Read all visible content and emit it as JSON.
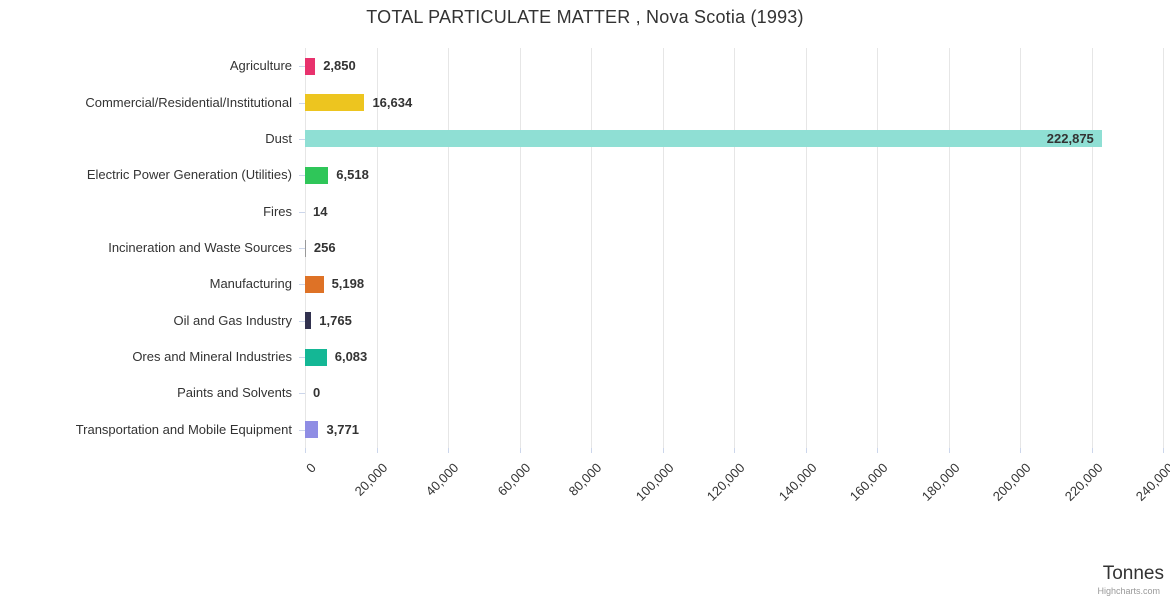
{
  "title": "TOTAL PARTICULATE MATTER , Nova Scotia (1993)",
  "x_axis": {
    "title": "Tonnes"
  },
  "credits": "Highcharts.com",
  "chart_data": {
    "type": "bar",
    "orientation": "horizontal",
    "title": "TOTAL PARTICULATE MATTER , Nova Scotia (1993)",
    "xlabel": "Tonnes",
    "ylabel": "",
    "xlim": [
      0,
      240000
    ],
    "grid": true,
    "legend": false,
    "categories": [
      "Agriculture",
      "Commercial/Residential/Institutional",
      "Dust",
      "Electric Power Generation (Utilities)",
      "Fires",
      "Incineration and Waste Sources",
      "Manufacturing",
      "Oil and Gas Industry",
      "Ores and Mineral Industries",
      "Paints and Solvents",
      "Transportation and Mobile Equipment"
    ],
    "values": [
      2850,
      16634,
      222875,
      6518,
      14,
      256,
      5198,
      1765,
      6083,
      0,
      3771
    ],
    "value_labels": [
      "2,850",
      "16,634",
      "222,875",
      "6,518",
      "14",
      "256",
      "5,198",
      "1,765",
      "6,083",
      "0",
      "3,771"
    ],
    "colors": [
      "#e8326d",
      "#edc51f",
      "#8fdfd4",
      "#2fc659",
      "#999999",
      "#999999",
      "#de7226",
      "#32324f",
      "#14b795",
      "#999999",
      "#8f8de4"
    ],
    "tick_values": [
      0,
      20000,
      40000,
      60000,
      80000,
      100000,
      120000,
      140000,
      160000,
      180000,
      200000,
      220000,
      240000
    ],
    "tick_labels": [
      "0",
      "20,000",
      "40,000",
      "60,000",
      "80,000",
      "100,000",
      "120,000",
      "140,000",
      "160,000",
      "180,000",
      "200,000",
      "220,000",
      "240,000"
    ]
  }
}
